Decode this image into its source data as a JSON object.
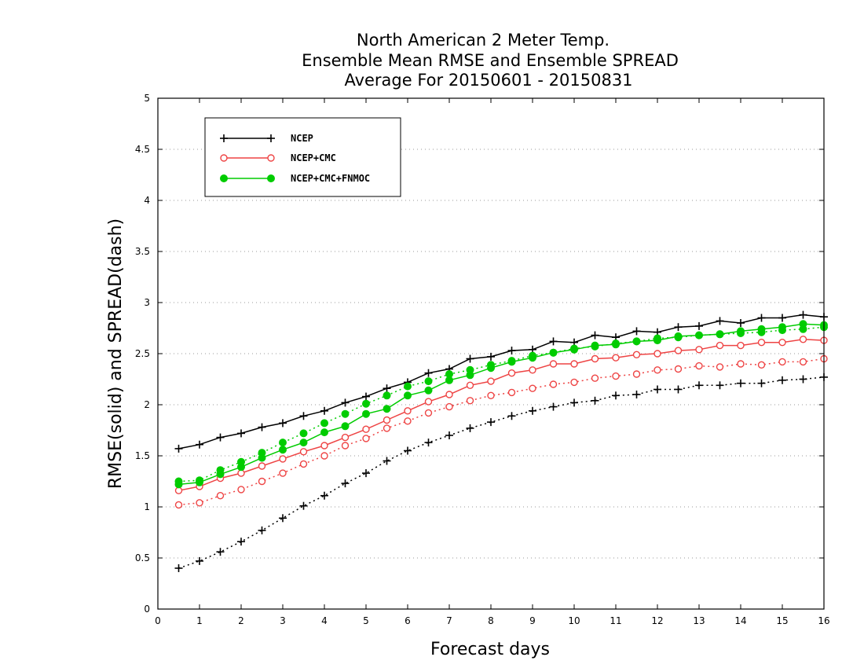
{
  "chart_data": {
    "type": "line",
    "title": [
      "North American 2 Meter Temp.",
      "Ensemble Mean RMSE and Ensemble SPREAD",
      "Average For 20150601 - 20150831"
    ],
    "xlabel": "Forecast days",
    "ylabel": "RMSE(solid) and SPREAD(dash)",
    "xlim": [
      0,
      16
    ],
    "ylim": [
      0,
      5
    ],
    "xticks": [
      "0",
      "1",
      "2",
      "3",
      "4",
      "5",
      "6",
      "7",
      "8",
      "9",
      "10",
      "11",
      "12",
      "13",
      "14",
      "15",
      "16"
    ],
    "yticks": [
      "0",
      "0.5",
      "1",
      "1.5",
      "2",
      "2.5",
      "3",
      "3.5",
      "4",
      "4.5",
      "5"
    ],
    "grid": true,
    "legend_position": "top-left",
    "x": [
      0.5,
      1.0,
      1.5,
      2.0,
      2.5,
      3.0,
      3.5,
      4.0,
      4.5,
      5.0,
      5.5,
      6.0,
      6.5,
      7.0,
      7.5,
      8.0,
      8.5,
      9.0,
      9.5,
      10.0,
      10.5,
      11.0,
      11.5,
      12.0,
      12.5,
      13.0,
      13.5,
      14.0,
      14.5,
      15.0,
      15.5,
      16.0
    ],
    "series": [
      {
        "name": "NCEP",
        "metric": "RMSE",
        "style": "solid",
        "marker": "plus",
        "color": "#000000",
        "values": [
          1.57,
          1.61,
          1.68,
          1.72,
          1.78,
          1.82,
          1.89,
          1.94,
          2.02,
          2.08,
          2.16,
          2.22,
          2.31,
          2.35,
          2.45,
          2.47,
          2.53,
          2.54,
          2.62,
          2.61,
          2.68,
          2.66,
          2.72,
          2.71,
          2.76,
          2.77,
          2.82,
          2.8,
          2.85,
          2.85,
          2.88,
          2.86
        ]
      },
      {
        "name": "NCEP+CMC",
        "metric": "RMSE",
        "style": "solid",
        "marker": "open-circle",
        "color": "#ee4444",
        "values": [
          1.16,
          1.2,
          1.28,
          1.33,
          1.4,
          1.47,
          1.54,
          1.6,
          1.68,
          1.76,
          1.85,
          1.94,
          2.03,
          2.1,
          2.19,
          2.23,
          2.31,
          2.34,
          2.4,
          2.4,
          2.45,
          2.46,
          2.49,
          2.5,
          2.53,
          2.54,
          2.58,
          2.58,
          2.61,
          2.61,
          2.64,
          2.63
        ]
      },
      {
        "name": "NCEP+CMC+FNMOC",
        "metric": "RMSE",
        "style": "solid",
        "marker": "filled-circle",
        "color": "#00cc00",
        "values": [
          1.22,
          1.24,
          1.32,
          1.39,
          1.48,
          1.56,
          1.63,
          1.73,
          1.79,
          1.91,
          1.96,
          2.09,
          2.14,
          2.24,
          2.29,
          2.36,
          2.42,
          2.46,
          2.51,
          2.54,
          2.58,
          2.59,
          2.62,
          2.63,
          2.67,
          2.68,
          2.69,
          2.72,
          2.74,
          2.76,
          2.79,
          2.78
        ]
      },
      {
        "name": "NCEP",
        "metric": "SPREAD",
        "style": "dash",
        "marker": "plus",
        "color": "#000000",
        "values": [
          0.4,
          0.47,
          0.56,
          0.66,
          0.77,
          0.89,
          1.01,
          1.11,
          1.23,
          1.33,
          1.45,
          1.55,
          1.63,
          1.7,
          1.77,
          1.83,
          1.89,
          1.94,
          1.98,
          2.02,
          2.04,
          2.09,
          2.1,
          2.15,
          2.15,
          2.19,
          2.19,
          2.21,
          2.21,
          2.24,
          2.25,
          2.27
        ]
      },
      {
        "name": "NCEP+CMC",
        "metric": "SPREAD",
        "style": "dash",
        "marker": "open-circle",
        "color": "#ee4444",
        "values": [
          1.02,
          1.04,
          1.11,
          1.17,
          1.25,
          1.33,
          1.42,
          1.5,
          1.6,
          1.67,
          1.77,
          1.84,
          1.92,
          1.98,
          2.04,
          2.09,
          2.12,
          2.16,
          2.2,
          2.22,
          2.26,
          2.28,
          2.3,
          2.34,
          2.35,
          2.38,
          2.37,
          2.4,
          2.39,
          2.42,
          2.42,
          2.45
        ]
      },
      {
        "name": "NCEP+CMC+FNMOC",
        "metric": "SPREAD",
        "style": "dash",
        "marker": "filled-circle",
        "color": "#00cc00",
        "values": [
          1.25,
          1.26,
          1.36,
          1.44,
          1.53,
          1.63,
          1.72,
          1.82,
          1.91,
          2.01,
          2.09,
          2.18,
          2.23,
          2.3,
          2.34,
          2.39,
          2.43,
          2.48,
          2.51,
          2.55,
          2.57,
          2.6,
          2.62,
          2.65,
          2.66,
          2.68,
          2.69,
          2.7,
          2.71,
          2.73,
          2.74,
          2.76
        ]
      }
    ]
  },
  "legend": {
    "items": [
      {
        "label": "NCEP",
        "marker": "plus",
        "color": "#000000"
      },
      {
        "label": "NCEP+CMC",
        "marker": "open-circle",
        "color": "#ee4444"
      },
      {
        "label": "NCEP+CMC+FNMOC",
        "marker": "filled-circle",
        "color": "#00cc00"
      }
    ]
  }
}
